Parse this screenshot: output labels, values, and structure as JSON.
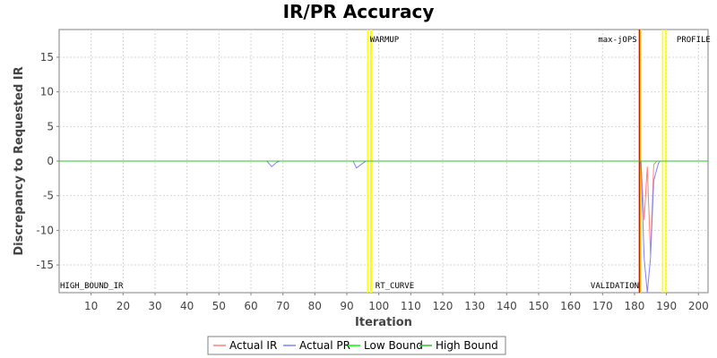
{
  "chart_data": {
    "type": "line",
    "title": "IR/PR Accuracy",
    "xlabel": "Iteration",
    "ylabel": "Discrepancy to Requested IR",
    "xlim": [
      0,
      203
    ],
    "ylim": [
      -19,
      19
    ],
    "x_ticks": [
      10,
      20,
      30,
      40,
      50,
      60,
      70,
      80,
      90,
      100,
      110,
      120,
      130,
      140,
      150,
      160,
      170,
      180,
      190,
      200
    ],
    "y_ticks": [
      -15,
      -10,
      -5,
      0,
      5,
      10,
      15
    ],
    "grid": true,
    "legend_position": "bottom",
    "markers": [
      {
        "label": "WARMUP",
        "x": [
          96.5,
          97.5
        ],
        "color": "#ffff00",
        "label_pos": "top"
      },
      {
        "label": "RT_CURVE",
        "x": [
          97.8
        ],
        "color": "#ffff00",
        "label_pos": "bottom"
      },
      {
        "label": "max-jOPS",
        "x": [
          181.6
        ],
        "color": "#ff0000",
        "label_pos": "top-left"
      },
      {
        "label": "VALIDATION",
        "x": [
          182.0
        ],
        "color": "#ffff00",
        "label_pos": "bottom-left"
      },
      {
        "label": "PROFILE",
        "x": [
          188.8,
          189.8
        ],
        "color": "#ffff00",
        "label_pos": "top"
      },
      {
        "label": "HIGH_BOUND_IR",
        "x": [],
        "color": "#000000",
        "label_pos": "bottom-start"
      }
    ],
    "series": [
      {
        "name": "Actual IR",
        "color": "#ff8080",
        "points": [
          [
            0,
            0
          ],
          [
            181,
            0
          ],
          [
            182,
            0
          ],
          [
            183,
            -8.5
          ],
          [
            184,
            -0.8
          ],
          [
            185,
            -13.5
          ],
          [
            186,
            -0.5
          ],
          [
            187,
            0
          ],
          [
            203,
            0
          ]
        ]
      },
      {
        "name": "Actual PR",
        "color": "#8080ff",
        "points": [
          [
            0,
            0
          ],
          [
            65,
            0
          ],
          [
            66.5,
            -0.8
          ],
          [
            68,
            -0.2
          ],
          [
            69,
            0
          ],
          [
            92,
            0
          ],
          [
            93,
            -1.0
          ],
          [
            95,
            -0.3
          ],
          [
            96,
            0
          ],
          [
            181,
            0
          ],
          [
            182,
            0
          ],
          [
            183,
            -14
          ],
          [
            184,
            -19
          ],
          [
            185,
            -14
          ],
          [
            186,
            -2.8
          ],
          [
            187.5,
            -0.3
          ],
          [
            188,
            0
          ],
          [
            203,
            0
          ]
        ]
      },
      {
        "name": "Low Bound",
        "color": "#00ff00",
        "points": [
          [
            0,
            0
          ],
          [
            181,
            0
          ],
          [
            181.5,
            0
          ],
          [
            182,
            0
          ],
          [
            184,
            0
          ],
          [
            186,
            0
          ],
          [
            203,
            0
          ]
        ]
      },
      {
        "name": "High Bound",
        "color": "#30c030",
        "points": [
          [
            0,
            0
          ],
          [
            181,
            0
          ],
          [
            182,
            0
          ],
          [
            184,
            0
          ],
          [
            186,
            0
          ],
          [
            203,
            0
          ]
        ]
      }
    ]
  }
}
